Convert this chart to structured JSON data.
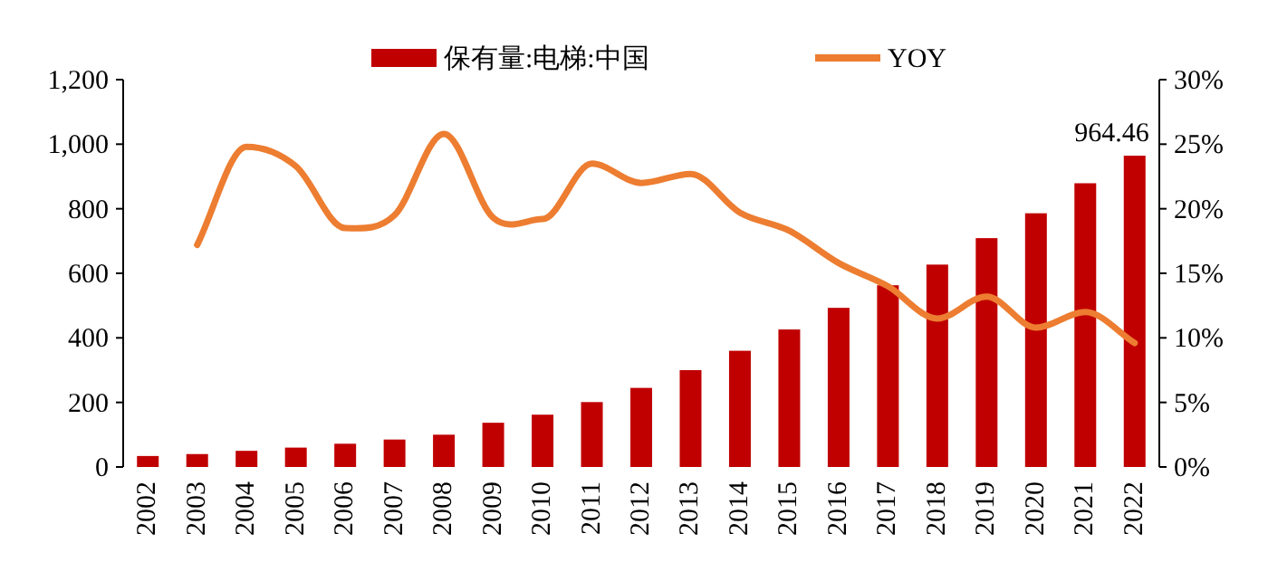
{
  "chart_data": {
    "type": "bar",
    "categories": [
      "2002",
      "2003",
      "2004",
      "2005",
      "2006",
      "2007",
      "2008",
      "2009",
      "2010",
      "2011",
      "2012",
      "2013",
      "2014",
      "2015",
      "2016",
      "2017",
      "2018",
      "2019",
      "2020",
      "2021",
      "2022"
    ],
    "series": [
      {
        "name": "保有量:电梯:中国",
        "color": "#c00000",
        "values": [
          34,
          40,
          50,
          60,
          72,
          85,
          100,
          137,
          162,
          201,
          245,
          300,
          360,
          426,
          493,
          563,
          627,
          709,
          786,
          879,
          964.46
        ],
        "value_labels": [
          null,
          null,
          null,
          null,
          null,
          null,
          null,
          null,
          null,
          null,
          null,
          null,
          null,
          null,
          null,
          null,
          null,
          null,
          null,
          null,
          "964.46"
        ]
      },
      {
        "name": "YOY",
        "type": "line",
        "axis": "y2",
        "color": "#ed7d31",
        "values": [
          null,
          17.2,
          24.8,
          23.3,
          18.5,
          19.5,
          25.8,
          19.3,
          19.2,
          23.5,
          22.0,
          22.7,
          19.7,
          18.3,
          15.8,
          14.0,
          11.5,
          13.2,
          10.8,
          12.0,
          9.6
        ]
      }
    ],
    "ylim": [
      0,
      1200
    ],
    "yticks": [
      0,
      200,
      400,
      600,
      800,
      {
        "value": 1000,
        "label": "1,000"
      },
      {
        "value": 1200,
        "label": "1,200"
      }
    ],
    "y2lim": [
      0,
      30
    ],
    "y2ticks": [
      {
        "value": 0,
        "label": "0%"
      },
      {
        "value": 5,
        "label": "5%"
      },
      {
        "value": 10,
        "label": "10%"
      },
      {
        "value": 15,
        "label": "15%"
      },
      {
        "value": 20,
        "label": "20%"
      },
      {
        "value": 25,
        "label": "25%"
      },
      {
        "value": 30,
        "label": "30%"
      }
    ],
    "legend": "top",
    "grid": false
  }
}
